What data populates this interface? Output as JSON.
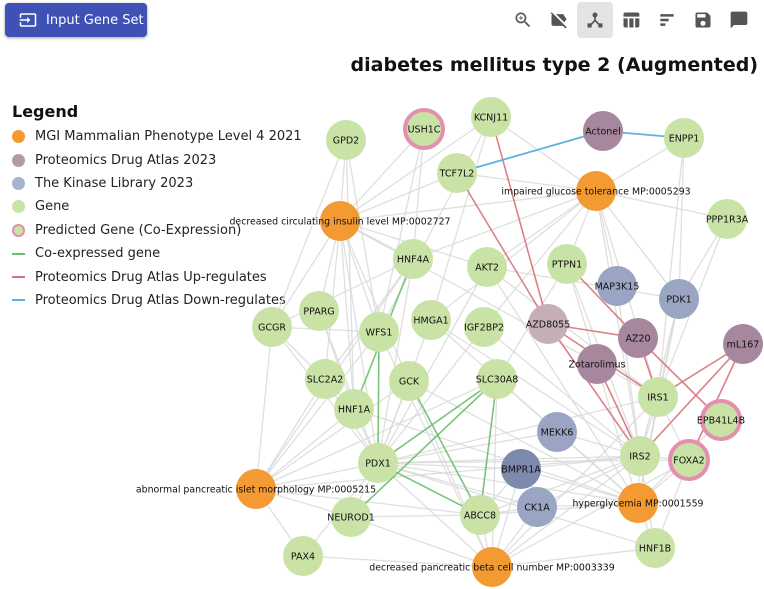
{
  "toolbar": {
    "input_button_label": "Input Gene Set",
    "icons": [
      "zoom-icon",
      "hide-label-icon",
      "network-icon",
      "table-icon",
      "bar-chart-icon",
      "save-icon",
      "comment-icon"
    ],
    "active": "network-icon"
  },
  "title": "diabetes mellitus type 2 (Augmented)",
  "legend": {
    "title": "Legend",
    "items": [
      {
        "label": "MGI Mammalian Phenotype Level 4 2021",
        "kind": "dot",
        "color": "#f39a32"
      },
      {
        "label": "Proteomics Drug Atlas 2023",
        "kind": "dot",
        "color": "#b49aa8"
      },
      {
        "label": "The Kinase Library 2023",
        "kind": "dot",
        "color": "#a8b4cc"
      },
      {
        "label": "Gene",
        "kind": "dot",
        "color": "#c9e3a6"
      },
      {
        "label": "Predicted Gene (Co-Expression)",
        "kind": "ring",
        "color": "#c9e3a6",
        "ring": "#e38fae"
      },
      {
        "label": "Co-expressed gene",
        "kind": "line",
        "color": "#6cbf6c"
      },
      {
        "label": "Proteomics Drug Atlas Up-regulates",
        "kind": "line",
        "color": "#d8727a"
      },
      {
        "label": "Proteomics Drug Atlas Down-regulates",
        "kind": "line",
        "color": "#5fb2e0"
      }
    ]
  },
  "colors": {
    "phenotype": "#f39a32",
    "drug": "#a6879d",
    "kinase": "#9aa5c3",
    "kinase_dark": "#7d89ad",
    "drug_light": "#c5aeb8",
    "gene": "#c9e3a6",
    "ring": "#e38fae",
    "edge_gray": "#d9d9d9",
    "edge_green": "#6cbf6c",
    "edge_red": "#d8727a",
    "edge_blue": "#5fb2e0"
  },
  "network": {
    "nodes": [
      {
        "id": "GPD2",
        "label": "GPD2",
        "type": "gene"
      },
      {
        "id": "USH1C",
        "label": "USH1C",
        "type": "predicted"
      },
      {
        "id": "KCNJ11",
        "label": "KCNJ11",
        "type": "gene"
      },
      {
        "id": "Actonel",
        "label": "Actonel",
        "type": "drug"
      },
      {
        "id": "ENPP1",
        "label": "ENPP1",
        "type": "gene"
      },
      {
        "id": "TCF7L2",
        "label": "TCF7L2",
        "type": "gene"
      },
      {
        "id": "IGT",
        "label": "impaired glucose tolerance MP:0005293",
        "type": "phenotype"
      },
      {
        "id": "DCIL",
        "label": "decreased circulating insulin level MP:0002727",
        "type": "phenotype"
      },
      {
        "id": "PPP1R3A",
        "label": "PPP1R3A",
        "type": "gene"
      },
      {
        "id": "HNF4A",
        "label": "HNF4A",
        "type": "gene"
      },
      {
        "id": "AKT2",
        "label": "AKT2",
        "type": "gene"
      },
      {
        "id": "PTPN1",
        "label": "PTPN1",
        "type": "gene"
      },
      {
        "id": "MAP3K15",
        "label": "MAP3K15",
        "type": "kinase"
      },
      {
        "id": "PDK1",
        "label": "PDK1",
        "type": "kinase"
      },
      {
        "id": "PPARG",
        "label": "PPARG",
        "type": "gene"
      },
      {
        "id": "GCGR",
        "label": "GCGR",
        "type": "gene"
      },
      {
        "id": "WFS1",
        "label": "WFS1",
        "type": "gene"
      },
      {
        "id": "HMGA1",
        "label": "HMGA1",
        "type": "gene"
      },
      {
        "id": "IGF2BP2",
        "label": "IGF2BP2",
        "type": "gene"
      },
      {
        "id": "AZD8055",
        "label": "AZD8055",
        "type": "drug_light"
      },
      {
        "id": "AZ20",
        "label": "AZ20",
        "type": "drug"
      },
      {
        "id": "mL167",
        "label": "mL167",
        "type": "drug"
      },
      {
        "id": "Zotarolimus",
        "label": "Zotarolimus",
        "type": "drug"
      },
      {
        "id": "SLC2A2",
        "label": "SLC2A2",
        "type": "gene"
      },
      {
        "id": "GCK",
        "label": "GCK",
        "type": "gene"
      },
      {
        "id": "SLC30A8",
        "label": "SLC30A8",
        "type": "gene"
      },
      {
        "id": "HNF1A",
        "label": "HNF1A",
        "type": "gene"
      },
      {
        "id": "IRS1",
        "label": "IRS1",
        "type": "gene"
      },
      {
        "id": "EPB41L4B",
        "label": "EPB41L4B",
        "type": "predicted"
      },
      {
        "id": "MEKK6",
        "label": "MEKK6",
        "type": "kinase"
      },
      {
        "id": "IRS2",
        "label": "IRS2",
        "type": "gene"
      },
      {
        "id": "FOXA2",
        "label": "FOXA2",
        "type": "predicted"
      },
      {
        "id": "PDX1",
        "label": "PDX1",
        "type": "gene"
      },
      {
        "id": "BMPR1A",
        "label": "BMPR1A",
        "type": "kinase_dark"
      },
      {
        "id": "APIM",
        "label": "abnormal pancreatic islet morphology MP:0005215",
        "type": "phenotype"
      },
      {
        "id": "CK1A",
        "label": "CK1A",
        "type": "kinase"
      },
      {
        "id": "HYPER",
        "label": "hyperglycemia MP:0001559",
        "type": "phenotype"
      },
      {
        "id": "NEUROD1",
        "label": "NEUROD1",
        "type": "gene"
      },
      {
        "id": "ABCC8",
        "label": "ABCC8",
        "type": "gene"
      },
      {
        "id": "HNF1B",
        "label": "HNF1B",
        "type": "gene"
      },
      {
        "id": "PAX4",
        "label": "PAX4",
        "type": "gene"
      },
      {
        "id": "DPBC",
        "label": "decreased pancreatic beta cell number MP:0003339",
        "type": "phenotype"
      }
    ],
    "edges": [
      {
        "s": "TCF7L2",
        "t": "Actonel",
        "kind": "blue"
      },
      {
        "s": "Actonel",
        "t": "ENPP1",
        "kind": "blue"
      },
      {
        "s": "TCF7L2",
        "t": "AZD8055",
        "kind": "red"
      },
      {
        "s": "KCNJ11",
        "t": "AZD8055",
        "kind": "red"
      },
      {
        "s": "PTPN1",
        "t": "AZ20",
        "kind": "red"
      },
      {
        "s": "AZD8055",
        "t": "AZ20",
        "kind": "red"
      },
      {
        "s": "AZD8055",
        "t": "IRS2",
        "kind": "red"
      },
      {
        "s": "AZD8055",
        "t": "IRS1",
        "kind": "red"
      },
      {
        "s": "Zotarolimus",
        "t": "IRS2",
        "kind": "red"
      },
      {
        "s": "AZ20",
        "t": "IRS1",
        "kind": "red"
      },
      {
        "s": "mL167",
        "t": "IRS1",
        "kind": "red"
      },
      {
        "s": "mL167",
        "t": "IRS2",
        "kind": "red"
      },
      {
        "s": "mL167",
        "t": "FOXA2",
        "kind": "red"
      },
      {
        "s": "AZ20",
        "t": "EPB41L4B",
        "kind": "red"
      },
      {
        "s": "HNF4A",
        "t": "HNF1A",
        "kind": "green"
      },
      {
        "s": "WFS1",
        "t": "PDX1",
        "kind": "green"
      },
      {
        "s": "GCK",
        "t": "ABCC8",
        "kind": "green"
      },
      {
        "s": "SLC30A8",
        "t": "PDX1",
        "kind": "green"
      },
      {
        "s": "SLC30A8",
        "t": "ABCC8",
        "kind": "green"
      },
      {
        "s": "SLC30A8",
        "t": "NEUROD1",
        "kind": "green"
      },
      {
        "s": "PDX1",
        "t": "ABCC8",
        "kind": "green"
      },
      {
        "s": "DCIL",
        "t": "GPD2",
        "kind": "gray"
      },
      {
        "s": "DCIL",
        "t": "USH1C",
        "kind": "gray"
      },
      {
        "s": "DCIL",
        "t": "KCNJ11",
        "kind": "gray"
      },
      {
        "s": "DCIL",
        "t": "TCF7L2",
        "kind": "gray"
      },
      {
        "s": "DCIL",
        "t": "HNF4A",
        "kind": "gray"
      },
      {
        "s": "DCIL",
        "t": "AKT2",
        "kind": "gray"
      },
      {
        "s": "DCIL",
        "t": "WFS1",
        "kind": "gray"
      },
      {
        "s": "DCIL",
        "t": "GCGR",
        "kind": "gray"
      },
      {
        "s": "DCIL",
        "t": "PPARG",
        "kind": "gray"
      },
      {
        "s": "DCIL",
        "t": "GCK",
        "kind": "gray"
      },
      {
        "s": "DCIL",
        "t": "SLC2A2",
        "kind": "gray"
      },
      {
        "s": "DCIL",
        "t": "HNF1A",
        "kind": "gray"
      },
      {
        "s": "DCIL",
        "t": "PDX1",
        "kind": "gray"
      },
      {
        "s": "DCIL",
        "t": "IRS1",
        "kind": "gray"
      },
      {
        "s": "DCIL",
        "t": "IGT",
        "kind": "gray"
      },
      {
        "s": "IGT",
        "t": "KCNJ11",
        "kind": "gray"
      },
      {
        "s": "IGT",
        "t": "TCF7L2",
        "kind": "gray"
      },
      {
        "s": "IGT",
        "t": "ENPP1",
        "kind": "gray"
      },
      {
        "s": "IGT",
        "t": "AKT2",
        "kind": "gray"
      },
      {
        "s": "IGT",
        "t": "PTPN1",
        "kind": "gray"
      },
      {
        "s": "IGT",
        "t": "PPP1R3A",
        "kind": "gray"
      },
      {
        "s": "IGT",
        "t": "PDK1",
        "kind": "gray"
      },
      {
        "s": "IGT",
        "t": "IRS1",
        "kind": "gray"
      },
      {
        "s": "IGT",
        "t": "IRS2",
        "kind": "gray"
      },
      {
        "s": "IGT",
        "t": "HNF4A",
        "kind": "gray"
      },
      {
        "s": "IGT",
        "t": "IGF2BP2",
        "kind": "gray"
      },
      {
        "s": "IGT",
        "t": "HMGA1",
        "kind": "gray"
      },
      {
        "s": "IGT",
        "t": "MAP3K15",
        "kind": "gray"
      },
      {
        "s": "HYPER",
        "t": "IRS1",
        "kind": "gray"
      },
      {
        "s": "HYPER",
        "t": "IRS2",
        "kind": "gray"
      },
      {
        "s": "HYPER",
        "t": "PDK1",
        "kind": "gray"
      },
      {
        "s": "HYPER",
        "t": "FOXA2",
        "kind": "gray"
      },
      {
        "s": "HYPER",
        "t": "EPB41L4B",
        "kind": "gray"
      },
      {
        "s": "HYPER",
        "t": "MEKK6",
        "kind": "gray"
      },
      {
        "s": "HYPER",
        "t": "CK1A",
        "kind": "gray"
      },
      {
        "s": "HYPER",
        "t": "BMPR1A",
        "kind": "gray"
      },
      {
        "s": "HYPER",
        "t": "GCK",
        "kind": "gray"
      },
      {
        "s": "HYPER",
        "t": "SLC30A8",
        "kind": "gray"
      },
      {
        "s": "HYPER",
        "t": "PDX1",
        "kind": "gray"
      },
      {
        "s": "HYPER",
        "t": "HNF1B",
        "kind": "gray"
      },
      {
        "s": "HYPER",
        "t": "ABCC8",
        "kind": "gray"
      },
      {
        "s": "HYPER",
        "t": "PTPN1",
        "kind": "gray"
      },
      {
        "s": "HYPER",
        "t": "HNF1A",
        "kind": "gray"
      },
      {
        "s": "HYPER",
        "t": "HMGA1",
        "kind": "gray"
      },
      {
        "s": "HYPER",
        "t": "AKT2",
        "kind": "gray"
      },
      {
        "s": "APIM",
        "t": "PDX1",
        "kind": "gray"
      },
      {
        "s": "APIM",
        "t": "NEUROD1",
        "kind": "gray"
      },
      {
        "s": "APIM",
        "t": "PAX4",
        "kind": "gray"
      },
      {
        "s": "APIM",
        "t": "HNF1A",
        "kind": "gray"
      },
      {
        "s": "APIM",
        "t": "GCK",
        "kind": "gray"
      },
      {
        "s": "APIM",
        "t": "HNF4A",
        "kind": "gray"
      },
      {
        "s": "APIM",
        "t": "SLC2A2",
        "kind": "gray"
      },
      {
        "s": "APIM",
        "t": "ABCC8",
        "kind": "gray"
      },
      {
        "s": "APIM",
        "t": "WFS1",
        "kind": "gray"
      },
      {
        "s": "APIM",
        "t": "SLC30A8",
        "kind": "gray"
      },
      {
        "s": "APIM",
        "t": "IRS2",
        "kind": "gray"
      },
      {
        "s": "APIM",
        "t": "GCGR",
        "kind": "gray"
      },
      {
        "s": "DPBC",
        "t": "PDX1",
        "kind": "gray"
      },
      {
        "s": "DPBC",
        "t": "NEUROD1",
        "kind": "gray"
      },
      {
        "s": "DPBC",
        "t": "PAX4",
        "kind": "gray"
      },
      {
        "s": "DPBC",
        "t": "ABCC8",
        "kind": "gray"
      },
      {
        "s": "DPBC",
        "t": "IRS2",
        "kind": "gray"
      },
      {
        "s": "DPBC",
        "t": "FOXA2",
        "kind": "gray"
      },
      {
        "s": "DPBC",
        "t": "SLC30A8",
        "kind": "gray"
      },
      {
        "s": "DPBC",
        "t": "CK1A",
        "kind": "gray"
      },
      {
        "s": "DPBC",
        "t": "HNF1B",
        "kind": "gray"
      },
      {
        "s": "DPBC",
        "t": "BMPR1A",
        "kind": "gray"
      },
      {
        "s": "DPBC",
        "t": "GCK",
        "kind": "gray"
      },
      {
        "s": "DPBC",
        "t": "IRS1",
        "kind": "gray"
      },
      {
        "s": "DPBC",
        "t": "WFS1",
        "kind": "gray"
      },
      {
        "s": "GCGR",
        "t": "HNF4A",
        "kind": "gray"
      },
      {
        "s": "GCGR",
        "t": "WFS1",
        "kind": "gray"
      },
      {
        "s": "GCGR",
        "t": "HNF1A",
        "kind": "gray"
      },
      {
        "s": "GCGR",
        "t": "PDX1",
        "kind": "gray"
      },
      {
        "s": "GPD2",
        "t": "HNF1A",
        "kind": "gray"
      },
      {
        "s": "GPD2",
        "t": "WFS1",
        "kind": "gray"
      },
      {
        "s": "PPARG",
        "t": "HNF1A",
        "kind": "gray"
      },
      {
        "s": "PPARG",
        "t": "PDX1",
        "kind": "gray"
      },
      {
        "s": "KCNJ11",
        "t": "WFS1",
        "kind": "gray"
      },
      {
        "s": "KCNJ11",
        "t": "HMGA1",
        "kind": "gray"
      },
      {
        "s": "HNF4A",
        "t": "PDX1",
        "kind": "gray"
      },
      {
        "s": "HNF4A",
        "t": "SLC2A2",
        "kind": "gray"
      },
      {
        "s": "AKT2",
        "t": "IRS1",
        "kind": "gray"
      },
      {
        "s": "AKT2",
        "t": "PDX1",
        "kind": "gray"
      },
      {
        "s": "PTPN1",
        "t": "IRS2",
        "kind": "gray"
      },
      {
        "s": "PTPN1",
        "t": "SLC30A8",
        "kind": "gray"
      },
      {
        "s": "HMGA1",
        "t": "PDX1",
        "kind": "gray"
      },
      {
        "s": "HMGA1",
        "t": "IRS2",
        "kind": "gray"
      },
      {
        "s": "IGF2BP2",
        "t": "PDX1",
        "kind": "gray"
      },
      {
        "s": "IGF2BP2",
        "t": "IRS2",
        "kind": "gray"
      },
      {
        "s": "GCK",
        "t": "PDX1",
        "kind": "gray"
      },
      {
        "s": "SLC2A2",
        "t": "PDX1",
        "kind": "gray"
      },
      {
        "s": "HNF1A",
        "t": "PDX1",
        "kind": "gray"
      },
      {
        "s": "PDX1",
        "t": "IRS2",
        "kind": "gray"
      },
      {
        "s": "PDX1",
        "t": "IRS1",
        "kind": "gray"
      },
      {
        "s": "PDX1",
        "t": "FOXA2",
        "kind": "gray"
      },
      {
        "s": "PDX1",
        "t": "NEUROD1",
        "kind": "gray"
      },
      {
        "s": "PDX1",
        "t": "PAX4",
        "kind": "gray"
      },
      {
        "s": "PDX1",
        "t": "HNF1B",
        "kind": "gray"
      },
      {
        "s": "PDX1",
        "t": "MEKK6",
        "kind": "gray"
      },
      {
        "s": "PDX1",
        "t": "CK1A",
        "kind": "gray"
      },
      {
        "s": "PDX1",
        "t": "BMPR1A",
        "kind": "gray"
      },
      {
        "s": "PDK1",
        "t": "IRS1",
        "kind": "gray"
      },
      {
        "s": "PDK1",
        "t": "IRS2",
        "kind": "gray"
      },
      {
        "s": "PDK1",
        "t": "AKT2",
        "kind": "gray"
      },
      {
        "s": "MAP3K15",
        "t": "IRS2",
        "kind": "gray"
      },
      {
        "s": "IRS1",
        "t": "IRS2",
        "kind": "gray"
      },
      {
        "s": "IRS1",
        "t": "FOXA2",
        "kind": "gray"
      },
      {
        "s": "IRS2",
        "t": "FOXA2",
        "kind": "gray"
      },
      {
        "s": "IRS2",
        "t": "HNF1B",
        "kind": "gray"
      },
      {
        "s": "IRS2",
        "t": "ABCC8",
        "kind": "gray"
      },
      {
        "s": "MEKK6",
        "t": "IRS2",
        "kind": "gray"
      },
      {
        "s": "CK1A",
        "t": "IRS2",
        "kind": "gray"
      },
      {
        "s": "BMPR1A",
        "t": "IRS2",
        "kind": "gray"
      },
      {
        "s": "ABCC8",
        "t": "NEUROD1",
        "kind": "gray"
      },
      {
        "s": "ABCC8",
        "t": "CK1A",
        "kind": "gray"
      },
      {
        "s": "ABCC8",
        "t": "BMPR1A",
        "kind": "gray"
      },
      {
        "s": "HNF1B",
        "t": "FOXA2",
        "kind": "gray"
      },
      {
        "s": "ENPP1",
        "t": "PDK1",
        "kind": "gray"
      },
      {
        "s": "ENPP1",
        "t": "IRS1",
        "kind": "gray"
      },
      {
        "s": "PPP1R3A",
        "t": "PDK1",
        "kind": "gray"
      },
      {
        "s": "PPP1R3A",
        "t": "IRS1",
        "kind": "gray"
      },
      {
        "s": "USH1C",
        "t": "WFS1",
        "kind": "gray"
      },
      {
        "s": "USH1C",
        "t": "HNF4A",
        "kind": "gray"
      },
      {
        "s": "GPD2",
        "t": "GCGR",
        "kind": "gray"
      }
    ]
  }
}
